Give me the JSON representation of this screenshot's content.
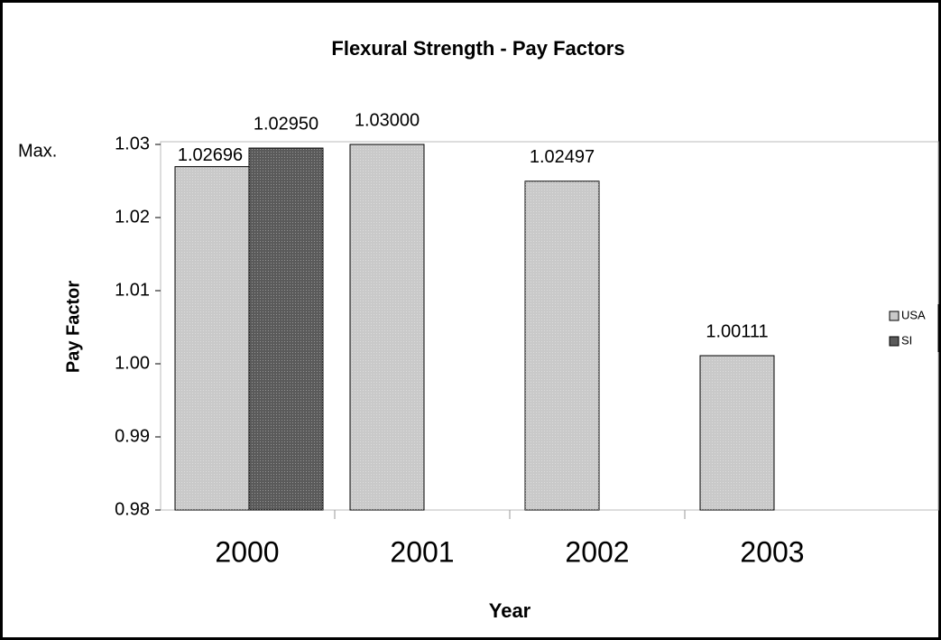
{
  "chart_data": {
    "type": "bar",
    "title": "Flexural Strength - Pay Factors",
    "x_label": "Year",
    "y_label": "Pay Factor",
    "annotation": "Max.",
    "categories": [
      "2000",
      "2001",
      "2002",
      "2003"
    ],
    "series": [
      {
        "name": "USA",
        "color": "#c9c9c9",
        "values": [
          1.02696,
          1.03,
          1.02497,
          1.00111
        ],
        "value_labels": [
          "1.02696",
          "1.03000",
          "1.02497",
          "1.00111"
        ]
      },
      {
        "name": "SI",
        "color": "#5a5a5a",
        "values": [
          1.0295,
          null,
          null,
          null
        ],
        "value_labels": [
          "1.02950",
          null,
          null,
          null
        ]
      }
    ],
    "ylim": [
      0.98,
      1.03
    ],
    "yticks": [
      0.98,
      0.99,
      {
        "value": 1.0,
        "label": "1.00"
      },
      1.01,
      1.02,
      1.03
    ],
    "legend": "right"
  }
}
